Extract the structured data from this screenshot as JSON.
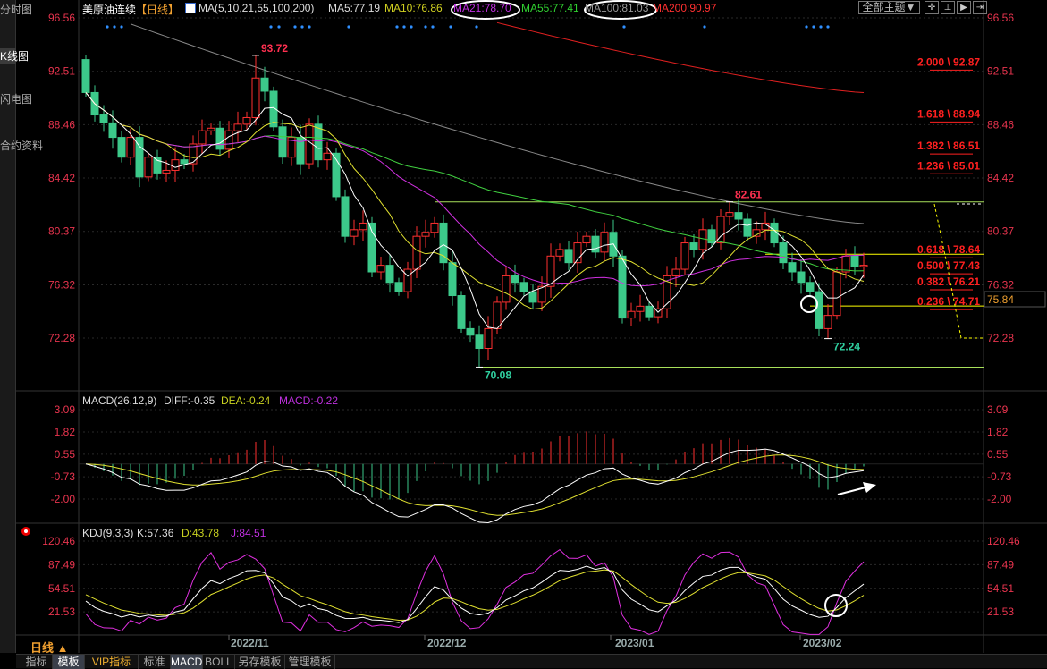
{
  "sidebar": {
    "tabs": [
      {
        "label": "分时图"
      },
      {
        "label": "K线图",
        "active": true
      },
      {
        "label": "闪电图"
      },
      {
        "label": "合约资料"
      }
    ]
  },
  "header": {
    "symbol": "美原油连续",
    "period": "【日线】",
    "ma_params": "MA(5,10,21,55,100,200)",
    "ma5": "MA5:77.19",
    "ma10": "MA10:76.86",
    "ma21": "MA21:78.70",
    "ma55": "MA55:77.41",
    "ma100": "MA100:81.03",
    "ma200": "MA200:90.97",
    "theme_button": "全部主题▼",
    "tool_icons": [
      "crosshair-icon",
      "axis-icon",
      "play-icon",
      "exit-icon"
    ]
  },
  "colors": {
    "up": "#ff3030",
    "down": "#3cc98a",
    "ma5": "#ffffff",
    "ma10": "#e0e030",
    "ma21": "#d030e0",
    "ma55": "#40d040",
    "ma100": "#888888",
    "ma200": "#e02020",
    "fib": "#ff2020",
    "axis": "#e8344e"
  },
  "price_axis": {
    "ticks": [
      "96.56",
      "92.51",
      "88.46",
      "84.42",
      "80.37",
      "76.32",
      "72.28"
    ],
    "current": "75.84"
  },
  "macd": {
    "title": "MACD(26,12,9)",
    "diff": "DIFF:-0.35",
    "dea": "DEA:-0.24",
    "macd": "MACD:-0.22",
    "ticks": [
      "3.09",
      "1.82",
      "0.55",
      "-0.73",
      "-2.00"
    ]
  },
  "kdj": {
    "title": "KDJ(9,3,3)",
    "k": "K:57.36",
    "d": "D:43.78",
    "j": "J:84.51",
    "ticks": [
      "120.46",
      "87.49",
      "54.51",
      "21.53"
    ]
  },
  "fib_levels": [
    {
      "label": "2.000 \\ 92.87",
      "value": 92.87
    },
    {
      "label": "1.618 \\ 88.94",
      "value": 88.94
    },
    {
      "label": "1.382 \\ 86.51",
      "value": 86.51
    },
    {
      "label": "1.236 \\ 85.01",
      "value": 85.01
    },
    {
      "label": "0.618 \\ 78.64",
      "value": 78.64
    },
    {
      "label": "0.500 \\ 77.43",
      "value": 77.43
    },
    {
      "label": "0.382 \\ 76.21",
      "value": 76.21
    },
    {
      "label": "0.236 \\ 74.71",
      "value": 74.71
    }
  ],
  "chart_data": {
    "type": "candlestick",
    "y_range": [
      72.28,
      96.56
    ],
    "closes": [
      90.9,
      89.2,
      88.6,
      87.5,
      86.0,
      87.5,
      84.5,
      86.0,
      84.8,
      85.0,
      85.8,
      85.5,
      87.0,
      88.0,
      88.2,
      86.6,
      88.0,
      88.5,
      89.0,
      92.0,
      91.0,
      88.3,
      86.0,
      87.5,
      85.5,
      88.5,
      85.8,
      86.3,
      83.0,
      80.0,
      80.5,
      81.0,
      77.3,
      77.8,
      76.5,
      75.8,
      77.5,
      80.0,
      80.3,
      81.0,
      78.0,
      75.5,
      73.0,
      72.5,
      71.5,
      73.0,
      75.0,
      77.0,
      76.5,
      75.8,
      75.0,
      76.2,
      78.5,
      79.0,
      78.0,
      79.5,
      80.0,
      78.8,
      80.3,
      78.5,
      73.8,
      74.3,
      74.7,
      73.9,
      74.5,
      77.0,
      77.5,
      79.5,
      79.0,
      80.5,
      79.5,
      81.5,
      81.8,
      81.3,
      80.0,
      80.5,
      81.0,
      79.5,
      78.0,
      77.3,
      76.5,
      75.8,
      73.0,
      74.0,
      77.3,
      78.5,
      77.7,
      77.8
    ],
    "first_open": 93.4,
    "annotations": [
      {
        "label": "93.72",
        "value": 93.72,
        "bar": 19,
        "kind": "high"
      },
      {
        "label": "70.08",
        "value": 70.08,
        "bar": 44,
        "kind": "low"
      },
      {
        "label": "82.61",
        "value": 82.61,
        "bar": 72,
        "kind": "high"
      },
      {
        "label": "72.24",
        "value": 72.24,
        "bar": 83,
        "kind": "low"
      }
    ],
    "ma100": {
      "start": 96.1,
      "end": 80.96
    },
    "ma200": {
      "start": 96.2,
      "end": 90.9
    },
    "hlines": [
      {
        "value": 82.61,
        "from_bar": 39
      },
      {
        "value": 78.64,
        "from_bar": 76
      },
      {
        "value": 74.71,
        "from_bar": 81
      },
      {
        "value": 70.08,
        "from_bar": 44
      }
    ],
    "x_labels": [
      "2022/11",
      "2022/12",
      "2023/01",
      "2023/02"
    ]
  },
  "footer": {
    "period": "日线 ▲",
    "tabs": [
      "指标",
      "模板",
      "VIP指标",
      "标准",
      "MACD",
      "BOLL",
      "另存模板",
      "管理模板"
    ]
  }
}
